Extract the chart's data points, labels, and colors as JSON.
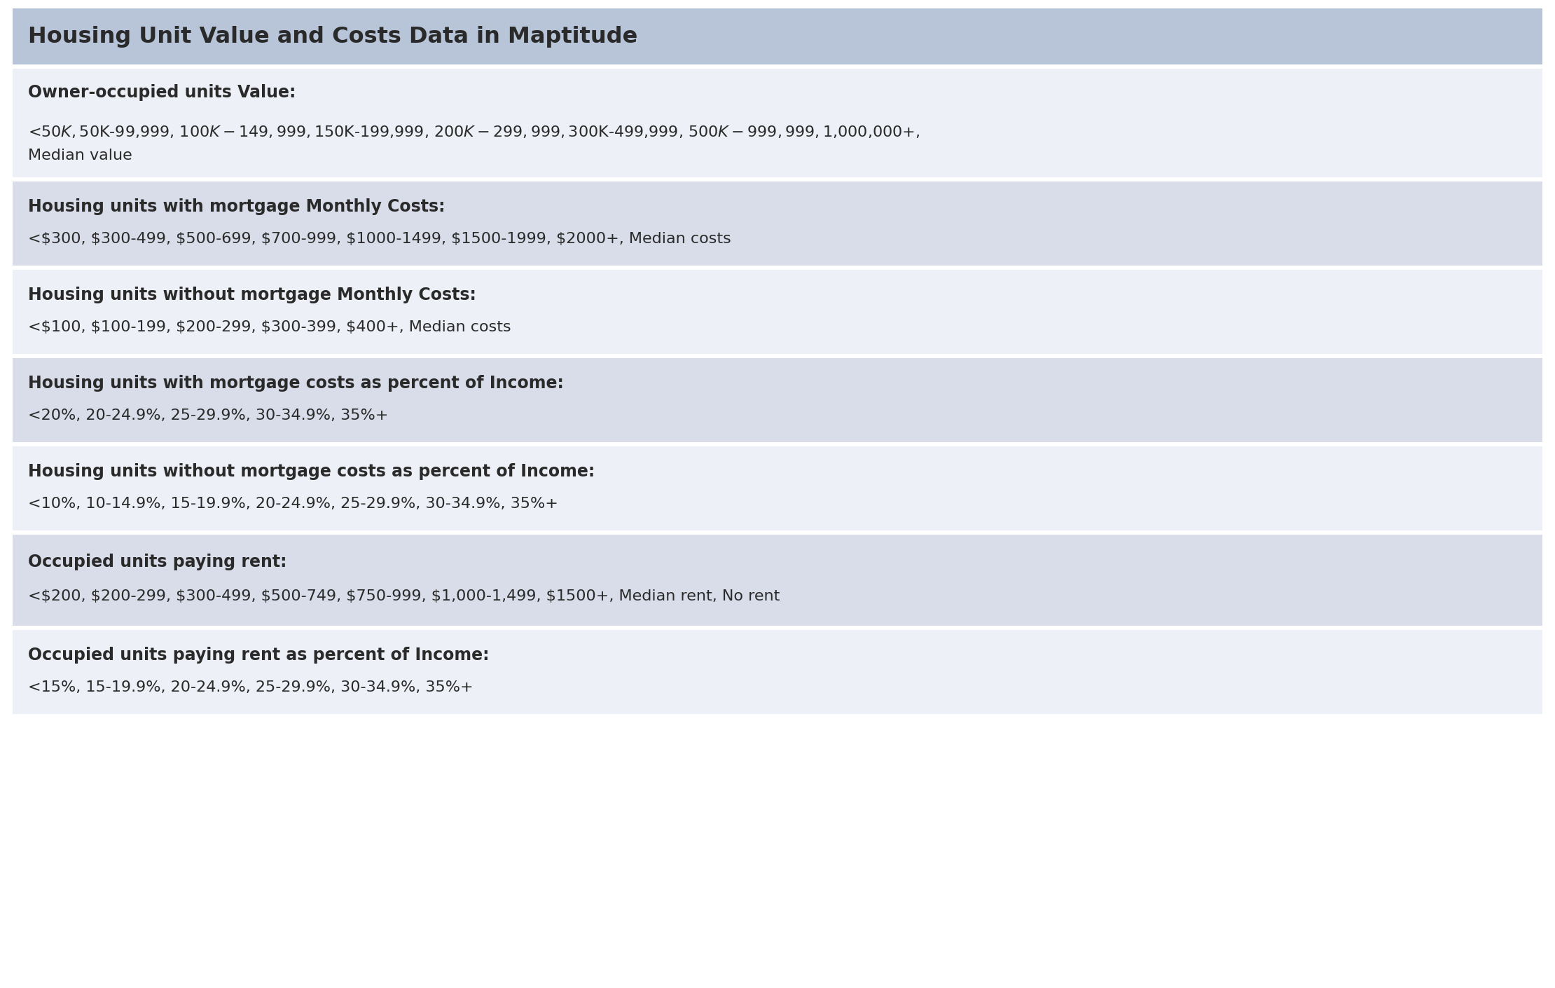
{
  "title": "Housing Unit Value and Costs Data in Maptitude",
  "title_bg": "#b8c4d8",
  "row_bg_light": "#eef0f7",
  "row_bg_medium": "#d8dde9",
  "text_color": "#2a2a2a",
  "fig_bg": "#ffffff",
  "rows": [
    {
      "heading": "Owner-occupied units Value:",
      "body_lines": [
        "<$50K, $50K-99,999, $100K-149,999, $150K-199,999, $200K-299,999, $300K-499,999, $500K-999,999, $1,000,000+,",
        "Median value"
      ],
      "bg": "#eef0f7"
    },
    {
      "heading": "Housing units with mortgage Monthly Costs:",
      "body_lines": [
        "<$300, $300-499, $500-699, $700-999, $1000-1499, $1500-1999, $2000+, Median costs"
      ],
      "bg": "#d8dde9"
    },
    {
      "heading": "Housing units without mortgage Monthly Costs:",
      "body_lines": [
        "<$100, $100-199, $200-299, $300-399, $400+, Median costs"
      ],
      "bg": "#eef0f7"
    },
    {
      "heading": "Housing units with mortgage costs as percent of Income:",
      "body_lines": [
        "<20%, 20-24.9%, 25-29.9%, 30-34.9%, 35%+"
      ],
      "bg": "#d8dde9"
    },
    {
      "heading": "Housing units without mortgage costs as percent of Income:",
      "body_lines": [
        "<10%, 10-14.9%, 15-19.9%, 20-24.9%, 25-29.9%, 30-34.9%, 35%+"
      ],
      "bg": "#eef0f7"
    },
    {
      "heading": "Occupied units paying rent:",
      "body_lines": [
        "<$200, $200-299, $300-499, $500-749, $750-999, $1,000-1,499, $1500+, Median rent, No rent"
      ],
      "bg": "#d8dde9"
    },
    {
      "heading": "Occupied units paying rent as percent of Income:",
      "body_lines": [
        "<15%, 15-19.9%, 20-24.9%, 25-29.9%, 30-34.9%, 35%+"
      ],
      "bg": "#eef0f7"
    }
  ],
  "title_fontsize": 23,
  "heading_fontsize": 17,
  "body_fontsize": 16
}
